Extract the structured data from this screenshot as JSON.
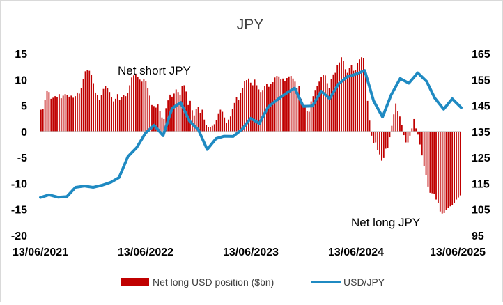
{
  "chart_data": {
    "type": "bar+line",
    "title": "JPY",
    "x_start": "2021-06-13",
    "x_end": "2025-06-13",
    "x_tick_labels": [
      "13/06/2021",
      "13/06/2022",
      "13/06/2023",
      "13/06/2024",
      "13/06/2025"
    ],
    "left_axis": {
      "ylim": [
        -20,
        15
      ],
      "ticks": [
        -20,
        -15,
        -10,
        -5,
        0,
        5,
        10,
        15
      ]
    },
    "right_axis": {
      "ylim": [
        95,
        165
      ],
      "ticks": [
        95,
        105,
        115,
        125,
        135,
        145,
        155,
        165
      ]
    },
    "grid": false,
    "legend_position": "bottom",
    "annotations": [
      "Net short JPY",
      "Net long JPY"
    ],
    "series": [
      {
        "name": "Net long USD position ($bn)",
        "kind": "bar",
        "axis": "left",
        "color": "#c00000",
        "points": [
          [
            "2021-06-15",
            4.2
          ],
          [
            "2021-06-22",
            4.4
          ],
          [
            "2021-06-29",
            6.1
          ],
          [
            "2021-07-06",
            7.9
          ],
          [
            "2021-07-13",
            7.6
          ],
          [
            "2021-07-20",
            6.3
          ],
          [
            "2021-07-27",
            6.5
          ],
          [
            "2021-08-03",
            6.8
          ],
          [
            "2021-08-10",
            6.6
          ],
          [
            "2021-08-17",
            7.2
          ],
          [
            "2021-08-24",
            6.4
          ],
          [
            "2021-08-31",
            6.9
          ],
          [
            "2021-09-07",
            7.2
          ],
          [
            "2021-09-14",
            7.0
          ],
          [
            "2021-09-21",
            6.7
          ],
          [
            "2021-09-28",
            6.9
          ],
          [
            "2021-10-05",
            6.5
          ],
          [
            "2021-10-12",
            6.8
          ],
          [
            "2021-10-19",
            7.5
          ],
          [
            "2021-10-26",
            7.3
          ],
          [
            "2021-11-02",
            8.4
          ],
          [
            "2021-11-09",
            10.1
          ],
          [
            "2021-11-16",
            11.6
          ],
          [
            "2021-11-23",
            11.8
          ],
          [
            "2021-11-30",
            11.7
          ],
          [
            "2021-12-07",
            10.9
          ],
          [
            "2021-12-14",
            9.3
          ],
          [
            "2021-12-21",
            7.5
          ],
          [
            "2021-12-28",
            7.0
          ],
          [
            "2022-01-04",
            6.1
          ],
          [
            "2022-01-11",
            7.0
          ],
          [
            "2022-01-18",
            8.2
          ],
          [
            "2022-01-25",
            8.8
          ],
          [
            "2022-02-01",
            8.4
          ],
          [
            "2022-02-08",
            7.6
          ],
          [
            "2022-02-15",
            6.6
          ],
          [
            "2022-02-22",
            5.8
          ],
          [
            "2022-03-01",
            6.3
          ],
          [
            "2022-03-08",
            7.2
          ],
          [
            "2022-03-15",
            6.1
          ],
          [
            "2022-03-22",
            6.6
          ],
          [
            "2022-03-29",
            7.0
          ],
          [
            "2022-04-05",
            6.8
          ],
          [
            "2022-04-12",
            7.4
          ],
          [
            "2022-04-19",
            8.9
          ],
          [
            "2022-04-26",
            10.4
          ],
          [
            "2022-05-03",
            10.8
          ],
          [
            "2022-05-10",
            11.1
          ],
          [
            "2022-05-17",
            10.5
          ],
          [
            "2022-05-24",
            10.0
          ],
          [
            "2022-05-31",
            9.6
          ],
          [
            "2022-06-07",
            10.1
          ],
          [
            "2022-06-14",
            9.7
          ],
          [
            "2022-06-21",
            8.3
          ],
          [
            "2022-06-28",
            6.9
          ],
          [
            "2022-07-05",
            5.1
          ],
          [
            "2022-07-12",
            4.9
          ],
          [
            "2022-07-19",
            4.6
          ],
          [
            "2022-07-26",
            5.2
          ],
          [
            "2022-08-02",
            4.0
          ],
          [
            "2022-08-09",
            2.7
          ],
          [
            "2022-08-16",
            2.4
          ],
          [
            "2022-08-23",
            4.5
          ],
          [
            "2022-08-30",
            6.0
          ],
          [
            "2022-09-06",
            7.1
          ],
          [
            "2022-09-13",
            6.7
          ],
          [
            "2022-09-20",
            7.3
          ],
          [
            "2022-09-27",
            8.1
          ],
          [
            "2022-10-04",
            7.6
          ],
          [
            "2022-10-11",
            7.1
          ],
          [
            "2022-10-18",
            8.7
          ],
          [
            "2022-10-25",
            8.9
          ],
          [
            "2022-11-01",
            7.7
          ],
          [
            "2022-11-08",
            5.1
          ],
          [
            "2022-11-15",
            5.9
          ],
          [
            "2022-11-22",
            4.1
          ],
          [
            "2022-11-29",
            3.1
          ],
          [
            "2022-12-06",
            4.3
          ],
          [
            "2022-12-13",
            4.7
          ],
          [
            "2022-12-20",
            3.6
          ],
          [
            "2022-12-27",
            4.2
          ],
          [
            "2023-01-03",
            2.3
          ],
          [
            "2023-01-10",
            1.3
          ],
          [
            "2023-01-17",
            0.9
          ],
          [
            "2023-01-24",
            0.8
          ],
          [
            "2023-01-31",
            1.1
          ],
          [
            "2023-02-07",
            1.4
          ],
          [
            "2023-02-14",
            2.2
          ],
          [
            "2023-02-21",
            3.5
          ],
          [
            "2023-02-28",
            4.2
          ],
          [
            "2023-03-07",
            3.8
          ],
          [
            "2023-03-14",
            2.7
          ],
          [
            "2023-03-21",
            1.6
          ],
          [
            "2023-03-28",
            2.3
          ],
          [
            "2023-04-04",
            2.9
          ],
          [
            "2023-04-11",
            4.3
          ],
          [
            "2023-04-18",
            5.5
          ],
          [
            "2023-04-25",
            6.6
          ],
          [
            "2023-05-02",
            6.1
          ],
          [
            "2023-05-09",
            7.4
          ],
          [
            "2023-05-16",
            8.4
          ],
          [
            "2023-05-23",
            9.7
          ],
          [
            "2023-05-30",
            9.9
          ],
          [
            "2023-06-06",
            10.2
          ],
          [
            "2023-06-13",
            9.4
          ],
          [
            "2023-06-20",
            8.9
          ],
          [
            "2023-06-27",
            10.0
          ],
          [
            "2023-07-04",
            8.9
          ],
          [
            "2023-07-11",
            8.1
          ],
          [
            "2023-07-18",
            7.6
          ],
          [
            "2023-07-25",
            8.0
          ],
          [
            "2023-08-01",
            8.7
          ],
          [
            "2023-08-08",
            9.1
          ],
          [
            "2023-08-15",
            8.6
          ],
          [
            "2023-08-22",
            9.1
          ],
          [
            "2023-08-29",
            9.5
          ],
          [
            "2023-09-05",
            10.4
          ],
          [
            "2023-09-12",
            10.7
          ],
          [
            "2023-09-19",
            10.6
          ],
          [
            "2023-09-26",
            10.1
          ],
          [
            "2023-10-03",
            10.2
          ],
          [
            "2023-10-10",
            9.7
          ],
          [
            "2023-10-17",
            10.3
          ],
          [
            "2023-10-24",
            10.6
          ],
          [
            "2023-10-31",
            10.7
          ],
          [
            "2023-11-07",
            10.2
          ],
          [
            "2023-11-14",
            9.6
          ],
          [
            "2023-11-21",
            8.4
          ],
          [
            "2023-11-28",
            8.8
          ],
          [
            "2023-12-05",
            6.3
          ],
          [
            "2023-12-12",
            4.8
          ],
          [
            "2023-12-19",
            5.1
          ],
          [
            "2023-12-26",
            4.0
          ],
          [
            "2024-01-02",
            3.8
          ],
          [
            "2024-01-09",
            5.8
          ],
          [
            "2024-01-16",
            6.8
          ],
          [
            "2024-01-23",
            8.0
          ],
          [
            "2024-01-30",
            8.7
          ],
          [
            "2024-02-06",
            9.6
          ],
          [
            "2024-02-13",
            10.5
          ],
          [
            "2024-02-20",
            10.9
          ],
          [
            "2024-02-27",
            10.8
          ],
          [
            "2024-03-05",
            9.3
          ],
          [
            "2024-03-12",
            8.4
          ],
          [
            "2024-03-19",
            10.1
          ],
          [
            "2024-03-26",
            11.0
          ],
          [
            "2024-04-02",
            11.3
          ],
          [
            "2024-04-09",
            12.8
          ],
          [
            "2024-04-16",
            13.3
          ],
          [
            "2024-04-23",
            14.3
          ],
          [
            "2024-04-30",
            13.6
          ],
          [
            "2024-05-07",
            12.0
          ],
          [
            "2024-05-14",
            11.3
          ],
          [
            "2024-05-21",
            12.3
          ],
          [
            "2024-05-28",
            12.8
          ],
          [
            "2024-06-04",
            11.7
          ],
          [
            "2024-06-11",
            11.9
          ],
          [
            "2024-06-18",
            13.2
          ],
          [
            "2024-06-25",
            13.9
          ],
          [
            "2024-07-02",
            14.3
          ],
          [
            "2024-07-09",
            14.1
          ],
          [
            "2024-07-16",
            11.1
          ],
          [
            "2024-07-23",
            5.9
          ],
          [
            "2024-07-30",
            2.1
          ],
          [
            "2024-08-06",
            -0.8
          ],
          [
            "2024-08-13",
            -2.2
          ],
          [
            "2024-08-20",
            -2.1
          ],
          [
            "2024-08-27",
            -3.6
          ],
          [
            "2024-09-03",
            -4.4
          ],
          [
            "2024-09-10",
            -5.6
          ],
          [
            "2024-09-17",
            -5.1
          ],
          [
            "2024-09-24",
            -3.3
          ],
          [
            "2024-10-01",
            -3.1
          ],
          [
            "2024-10-08",
            -1.1
          ],
          [
            "2024-10-15",
            1.1
          ],
          [
            "2024-10-22",
            3.3
          ],
          [
            "2024-10-29",
            5.4
          ],
          [
            "2024-11-05",
            3.9
          ],
          [
            "2024-11-12",
            2.9
          ],
          [
            "2024-11-19",
            1.2
          ],
          [
            "2024-11-26",
            -0.7
          ],
          [
            "2024-12-03",
            -2.1
          ],
          [
            "2024-12-10",
            -2.1
          ],
          [
            "2024-12-17",
            -0.8
          ],
          [
            "2024-12-24",
            0.6
          ],
          [
            "2024-12-31",
            2.4
          ],
          [
            "2025-01-07",
            0.6
          ],
          [
            "2025-01-14",
            -0.6
          ],
          [
            "2025-01-21",
            -2.5
          ],
          [
            "2025-01-28",
            -4.6
          ],
          [
            "2025-02-04",
            -6.7
          ],
          [
            "2025-02-11",
            -8.4
          ],
          [
            "2025-02-18",
            -10.6
          ],
          [
            "2025-02-25",
            -11.8
          ],
          [
            "2025-03-04",
            -11.9
          ],
          [
            "2025-03-11",
            -12.0
          ],
          [
            "2025-03-18",
            -13.1
          ],
          [
            "2025-03-25",
            -13.7
          ],
          [
            "2025-04-01",
            -15.4
          ],
          [
            "2025-04-08",
            -15.8
          ],
          [
            "2025-04-15",
            -15.7
          ],
          [
            "2025-04-22",
            -15.1
          ],
          [
            "2025-04-29",
            -14.7
          ],
          [
            "2025-05-06",
            -14.4
          ],
          [
            "2025-05-13",
            -14.2
          ],
          [
            "2025-05-20",
            -13.8
          ],
          [
            "2025-05-27",
            -13.1
          ],
          [
            "2025-06-03",
            -12.7
          ],
          [
            "2025-06-10",
            -12.3
          ]
        ]
      },
      {
        "name": "USD/JPY",
        "kind": "line",
        "axis": "right",
        "color": "#1f8ac2",
        "points": [
          [
            "2021-06-13",
            109.6
          ],
          [
            "2021-07-13",
            110.6
          ],
          [
            "2021-08-13",
            109.7
          ],
          [
            "2021-09-13",
            109.9
          ],
          [
            "2021-10-13",
            113.5
          ],
          [
            "2021-11-13",
            114.0
          ],
          [
            "2021-12-13",
            113.5
          ],
          [
            "2022-01-13",
            114.3
          ],
          [
            "2022-02-13",
            115.5
          ],
          [
            "2022-03-13",
            117.3
          ],
          [
            "2022-04-13",
            125.4
          ],
          [
            "2022-05-13",
            128.8
          ],
          [
            "2022-06-13",
            134.4
          ],
          [
            "2022-07-13",
            137.4
          ],
          [
            "2022-08-13",
            133.4
          ],
          [
            "2022-09-13",
            143.9
          ],
          [
            "2022-10-13",
            146.2
          ],
          [
            "2022-11-13",
            139.0
          ],
          [
            "2022-12-13",
            135.7
          ],
          [
            "2023-01-13",
            128.1
          ],
          [
            "2023-02-13",
            132.3
          ],
          [
            "2023-03-13",
            133.2
          ],
          [
            "2023-04-13",
            133.1
          ],
          [
            "2023-05-13",
            135.7
          ],
          [
            "2023-06-13",
            140.1
          ],
          [
            "2023-07-13",
            138.1
          ],
          [
            "2023-08-13",
            144.5
          ],
          [
            "2023-09-13",
            147.2
          ],
          [
            "2023-10-13",
            149.6
          ],
          [
            "2023-11-13",
            151.7
          ],
          [
            "2023-12-13",
            144.7
          ],
          [
            "2024-01-13",
            144.8
          ],
          [
            "2024-02-13",
            150.5
          ],
          [
            "2024-03-13",
            147.7
          ],
          [
            "2024-04-13",
            153.3
          ],
          [
            "2024-05-13",
            156.1
          ],
          [
            "2024-06-13",
            157.1
          ],
          [
            "2024-07-13",
            158.5
          ],
          [
            "2024-08-13",
            146.8
          ],
          [
            "2024-09-13",
            140.6
          ],
          [
            "2024-10-13",
            149.1
          ],
          [
            "2024-11-13",
            155.4
          ],
          [
            "2024-12-13",
            153.6
          ],
          [
            "2025-01-13",
            157.6
          ],
          [
            "2025-02-13",
            154.3
          ],
          [
            "2025-03-13",
            147.9
          ],
          [
            "2025-04-13",
            143.6
          ],
          [
            "2025-05-13",
            147.6
          ],
          [
            "2025-06-13",
            144.2
          ]
        ]
      }
    ]
  }
}
